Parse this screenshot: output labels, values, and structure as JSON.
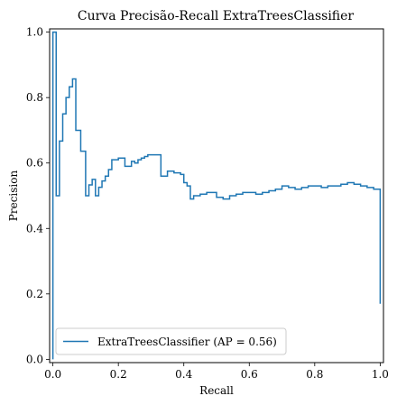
{
  "chart_data": {
    "type": "line",
    "title": "Curva Precisão-Recall ExtraTreesClassifier",
    "xlabel": "Recall",
    "ylabel": "Precision",
    "xlim": [
      -0.01,
      1.01
    ],
    "ylim": [
      -0.01,
      1.01
    ],
    "xticks": [
      0.0,
      0.2,
      0.4,
      0.6,
      0.8,
      1.0
    ],
    "xtick_labels": [
      "0.0",
      "0.2",
      "0.4",
      "0.6",
      "0.8",
      "1.0"
    ],
    "yticks": [
      0.0,
      0.2,
      0.4,
      0.6,
      0.8,
      1.0
    ],
    "ytick_labels": [
      "0.0",
      "0.2",
      "0.4",
      "0.6",
      "0.8",
      "1.0"
    ],
    "grid": false,
    "legend_position": "lower-left",
    "line_color": "#1f77b4",
    "series": [
      {
        "name": "ExtraTreesClassifier (AP = 0.56)",
        "step": "post",
        "x": [
          0.0,
          0.0,
          0.01,
          0.02,
          0.03,
          0.04,
          0.05,
          0.06,
          0.07,
          0.085,
          0.1,
          0.11,
          0.12,
          0.13,
          0.14,
          0.15,
          0.16,
          0.17,
          0.18,
          0.19,
          0.2,
          0.22,
          0.24,
          0.25,
          0.26,
          0.27,
          0.28,
          0.29,
          0.3,
          0.33,
          0.35,
          0.37,
          0.39,
          0.4,
          0.41,
          0.42,
          0.43,
          0.45,
          0.47,
          0.5,
          0.52,
          0.54,
          0.56,
          0.58,
          0.6,
          0.62,
          0.64,
          0.66,
          0.68,
          0.7,
          0.72,
          0.74,
          0.76,
          0.78,
          0.8,
          0.82,
          0.84,
          0.86,
          0.88,
          0.9,
          0.92,
          0.94,
          0.96,
          0.98,
          1.0,
          1.0
        ],
        "y": [
          0.0,
          1.0,
          0.5,
          0.667,
          0.75,
          0.8,
          0.833,
          0.857,
          0.7,
          0.636,
          0.5,
          0.533,
          0.55,
          0.5,
          0.526,
          0.545,
          0.56,
          0.58,
          0.61,
          0.61,
          0.615,
          0.59,
          0.605,
          0.6,
          0.61,
          0.615,
          0.62,
          0.625,
          0.625,
          0.56,
          0.575,
          0.57,
          0.565,
          0.54,
          0.53,
          0.49,
          0.5,
          0.505,
          0.51,
          0.495,
          0.49,
          0.5,
          0.505,
          0.51,
          0.51,
          0.505,
          0.51,
          0.515,
          0.52,
          0.53,
          0.525,
          0.52,
          0.525,
          0.53,
          0.53,
          0.525,
          0.53,
          0.53,
          0.535,
          0.54,
          0.535,
          0.53,
          0.525,
          0.52,
          0.515,
          0.17
        ]
      }
    ]
  }
}
